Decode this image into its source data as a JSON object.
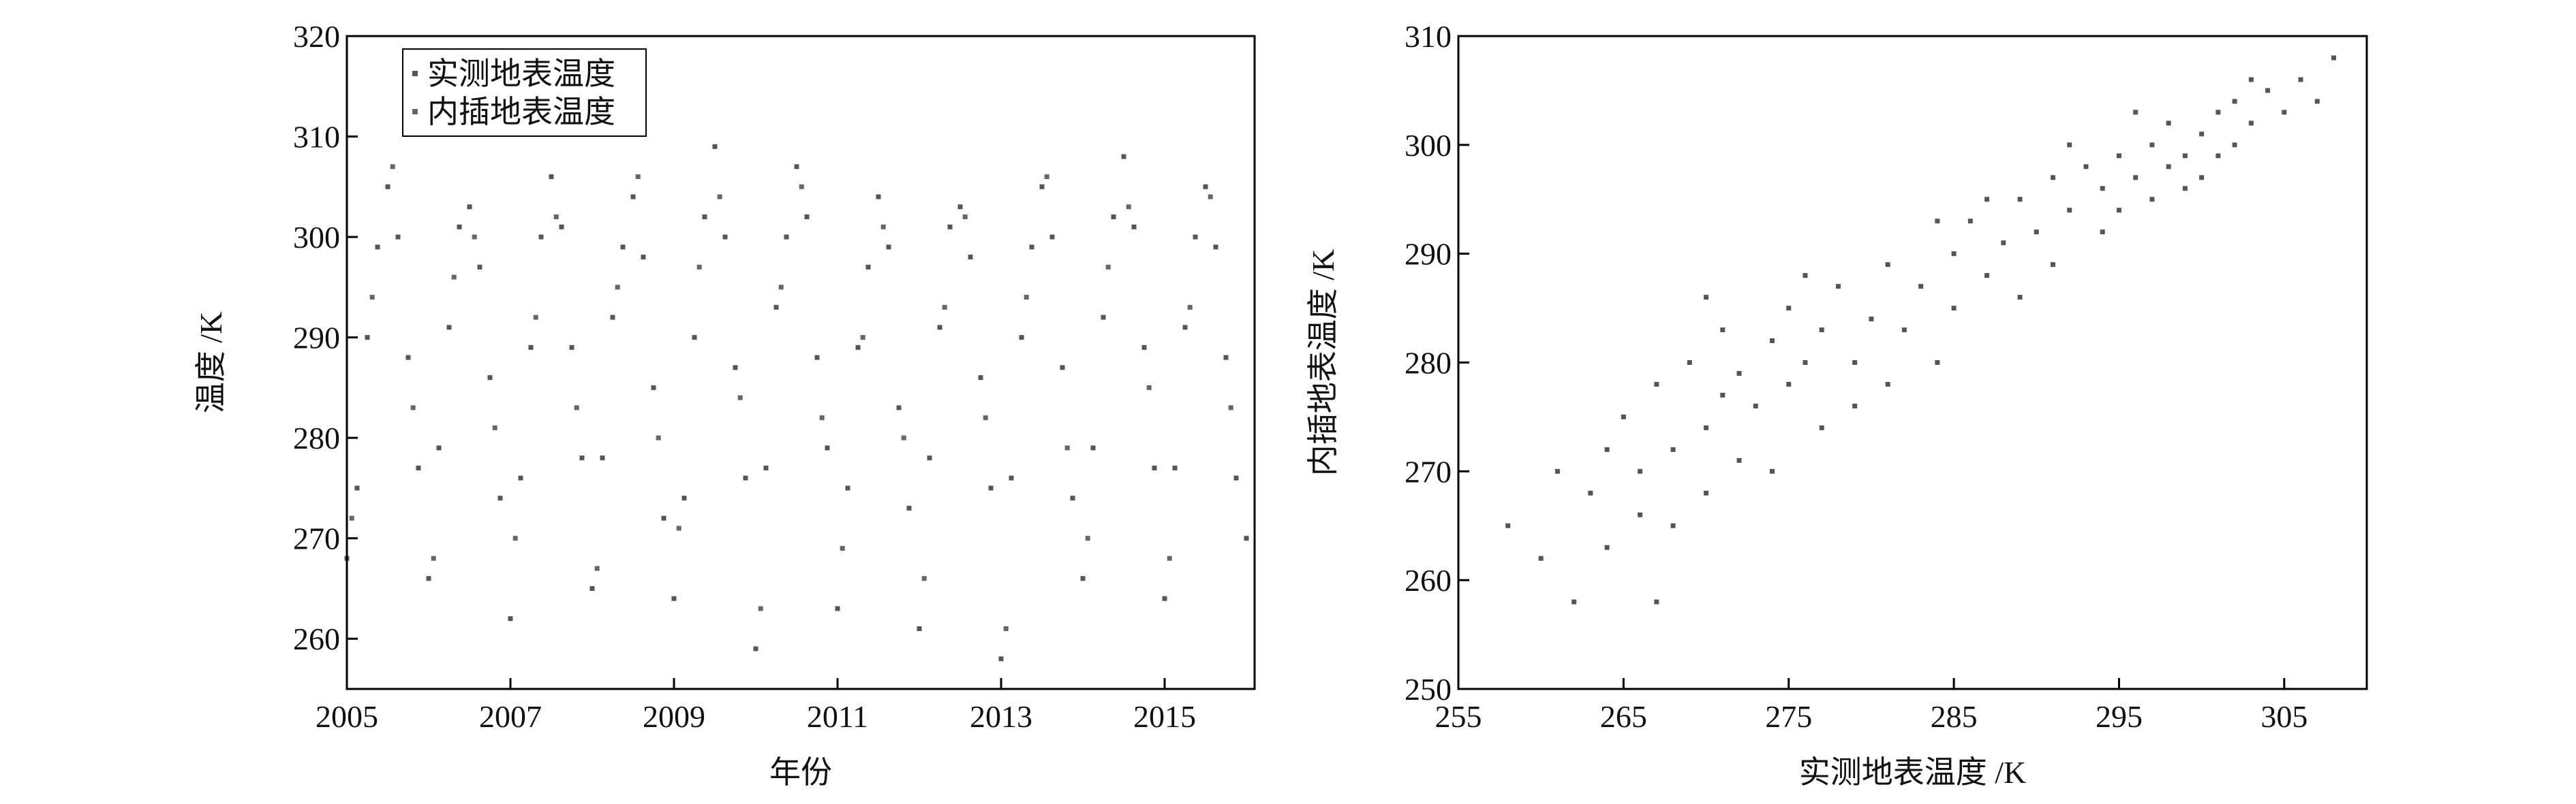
{
  "chart_data": [
    {
      "type": "scatter",
      "xlabel": "年份",
      "ylabel": "温度 /K",
      "xlim": [
        2005,
        2016.1
      ],
      "ylim": [
        255,
        320
      ],
      "xticks": [
        2005,
        2007,
        2009,
        2011,
        2013,
        2015
      ],
      "yticks": [
        260,
        270,
        280,
        290,
        300,
        310,
        320
      ],
      "legend": "upper left",
      "series": [
        {
          "name": "实测地表温度",
          "color": "#555555",
          "x": [
            2005,
            2005.125,
            2005.25,
            2005.375,
            2005.5,
            2005.625,
            2005.75,
            2005.875,
            2006,
            2006.125,
            2006.25,
            2006.375,
            2006.5,
            2006.625,
            2006.75,
            2006.875,
            2007,
            2007.125,
            2007.25,
            2007.375,
            2007.5,
            2007.625,
            2007.75,
            2007.875,
            2008,
            2008.125,
            2008.25,
            2008.375,
            2008.5,
            2008.625,
            2008.75,
            2008.875,
            2009,
            2009.125,
            2009.25,
            2009.375,
            2009.5,
            2009.625,
            2009.75,
            2009.875,
            2010,
            2010.125,
            2010.25,
            2010.375,
            2010.5,
            2010.625,
            2010.75,
            2010.875,
            2011,
            2011.125,
            2011.25,
            2011.375,
            2011.5,
            2011.625,
            2011.75,
            2011.875,
            2012,
            2012.125,
            2012.25,
            2012.375,
            2012.5,
            2012.625,
            2012.75,
            2012.875,
            2013,
            2013.125,
            2013.25,
            2013.375,
            2013.5,
            2013.625,
            2013.75,
            2013.875,
            2014,
            2014.125,
            2014.25,
            2014.375,
            2014.5,
            2014.625,
            2014.75,
            2014.875,
            2015,
            2015.125,
            2015.25,
            2015.375,
            2015.5,
            2015.625,
            2015.75,
            2015.875,
            2016
          ],
          "values": [
            268,
            275,
            290,
            299,
            305,
            300,
            288,
            277,
            266,
            279,
            291,
            301,
            303,
            297,
            286,
            274,
            262,
            276,
            289,
            300,
            306,
            301,
            289,
            278,
            265,
            278,
            292,
            299,
            304,
            298,
            285,
            272,
            264,
            274,
            290,
            302,
            309,
            300,
            287,
            276,
            259,
            277,
            293,
            300,
            307,
            302,
            288,
            279,
            263,
            275,
            289,
            297,
            304,
            299,
            283,
            273,
            261,
            278,
            291,
            301,
            303,
            298,
            286,
            275,
            258,
            276,
            290,
            299,
            305,
            300,
            287,
            274,
            266,
            279,
            292,
            302,
            308,
            301,
            289,
            277,
            264,
            277,
            291,
            300,
            305,
            299,
            288,
            276,
            270
          ]
        },
        {
          "name": "内插地表温度",
          "color": "#666666",
          "x": [
            2005.06,
            2005.31,
            2005.56,
            2005.81,
            2006.06,
            2006.31,
            2006.56,
            2006.81,
            2007.06,
            2007.31,
            2007.56,
            2007.81,
            2008.06,
            2008.31,
            2008.56,
            2008.81,
            2009.06,
            2009.31,
            2009.56,
            2009.81,
            2010.06,
            2010.31,
            2010.56,
            2010.81,
            2011.06,
            2011.31,
            2011.56,
            2011.81,
            2012.06,
            2012.31,
            2012.56,
            2012.81,
            2013.06,
            2013.31,
            2013.56,
            2013.81,
            2014.06,
            2014.31,
            2014.56,
            2014.81,
            2015.06,
            2015.31,
            2015.56,
            2015.81
          ],
          "values": [
            272,
            294,
            307,
            283,
            268,
            296,
            300,
            281,
            270,
            292,
            302,
            283,
            267,
            295,
            306,
            280,
            271,
            297,
            304,
            284,
            263,
            295,
            305,
            282,
            269,
            290,
            301,
            280,
            266,
            293,
            302,
            282,
            261,
            294,
            306,
            279,
            270,
            297,
            303,
            285,
            268,
            293,
            304,
            283
          ]
        }
      ]
    },
    {
      "type": "scatter",
      "xlabel": "实测地表温度 /K",
      "ylabel": "内插地表温度 /K",
      "xlim": [
        255,
        310
      ],
      "ylim": [
        250,
        310
      ],
      "xticks": [
        255,
        265,
        275,
        285,
        295,
        305
      ],
      "yticks": [
        250,
        260,
        270,
        280,
        290,
        300,
        310
      ],
      "series": [
        {
          "color": "#555555",
          "x": [
            258,
            260,
            261,
            262,
            263,
            264,
            264,
            265,
            266,
            266,
            267,
            268,
            268,
            269,
            270,
            270,
            271,
            271,
            272,
            272,
            273,
            274,
            274,
            275,
            275,
            276,
            277,
            277,
            278,
            279,
            280,
            281,
            281,
            282,
            283,
            284,
            285,
            285,
            286,
            287,
            288,
            289,
            289,
            290,
            291,
            291,
            292,
            293,
            294,
            294,
            295,
            295,
            296,
            297,
            297,
            298,
            298,
            299,
            300,
            300,
            301,
            302,
            302,
            303,
            304,
            305,
            306,
            307,
            308,
            296,
            299,
            301,
            303,
            287,
            276,
            270,
            284,
            292,
            279,
            267
          ],
          "values": [
            265,
            262,
            270,
            258,
            268,
            272,
            263,
            275,
            266,
            270,
            278,
            272,
            265,
            280,
            274,
            268,
            277,
            283,
            271,
            279,
            276,
            282,
            270,
            278,
            285,
            280,
            274,
            283,
            287,
            280,
            284,
            278,
            289,
            283,
            287,
            280,
            290,
            285,
            293,
            288,
            291,
            286,
            295,
            292,
            297,
            289,
            294,
            298,
            292,
            296,
            299,
            294,
            297,
            300,
            295,
            298,
            302,
            299,
            301,
            297,
            303,
            300,
            304,
            302,
            305,
            303,
            306,
            304,
            308,
            303,
            296,
            299,
            306,
            295,
            288,
            286,
            293,
            300,
            276,
            258
          ]
        }
      ]
    }
  ]
}
